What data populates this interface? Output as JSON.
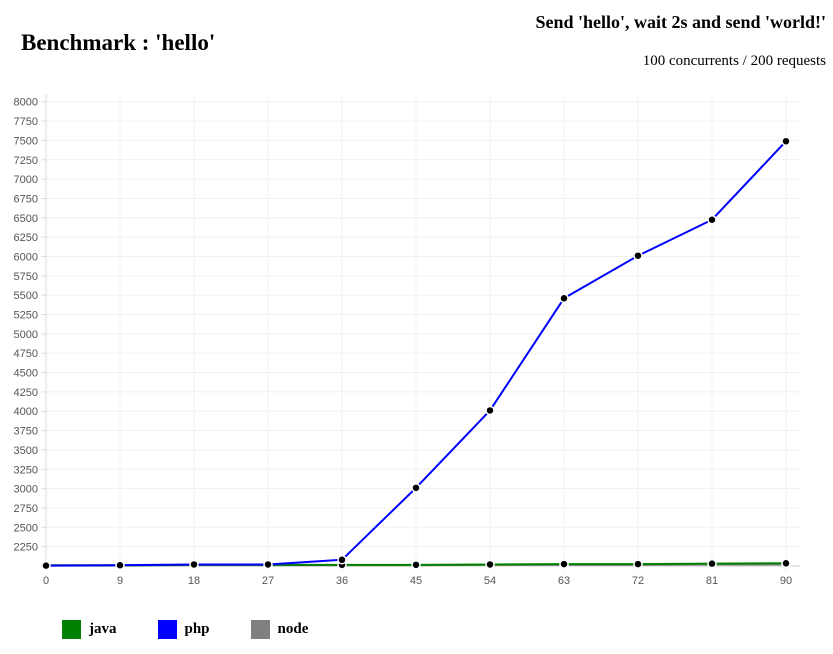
{
  "page": {
    "heading": "Benchmark : 'hello'"
  },
  "chart_data": {
    "type": "line",
    "title": "Send 'hello', wait 2s and send 'world!'",
    "subtitle": "100 concurrents / 200 requests",
    "xlabel": "",
    "ylabel": "",
    "x": [
      0,
      9,
      18,
      27,
      36,
      45,
      54,
      63,
      72,
      81,
      90
    ],
    "x_ticks": [
      "0",
      "9",
      "18",
      "27",
      "36",
      "45",
      "54",
      "63",
      "72",
      "81",
      "90"
    ],
    "y_ticks": [
      "2250",
      "2500",
      "2750",
      "3000",
      "3250",
      "3500",
      "3750",
      "4000",
      "4250",
      "4500",
      "4750",
      "5000",
      "5250",
      "5500",
      "5750",
      "6000",
      "6250",
      "6500",
      "6750",
      "7000",
      "7250",
      "7500",
      "7750",
      "8000"
    ],
    "ylim": [
      2000,
      8100
    ],
    "xlim": [
      0,
      90
    ],
    "grid": true,
    "legend_position": "bottom-left",
    "series": [
      {
        "name": "java",
        "color": "#008000",
        "values": [
          2010,
          2010,
          2015,
          2015,
          2015,
          2015,
          2020,
          2025,
          2025,
          2030,
          2035
        ]
      },
      {
        "name": "php",
        "color": "#0000ff",
        "values": [
          2005,
          2010,
          2020,
          2020,
          2080,
          3010,
          4010,
          5460,
          6010,
          6475,
          7490
        ]
      },
      {
        "name": "node",
        "color": "#808080",
        "values": [
          2005,
          2005,
          2010,
          2010,
          2010,
          2010,
          2015,
          2015,
          2015,
          2020,
          2020
        ]
      }
    ]
  }
}
